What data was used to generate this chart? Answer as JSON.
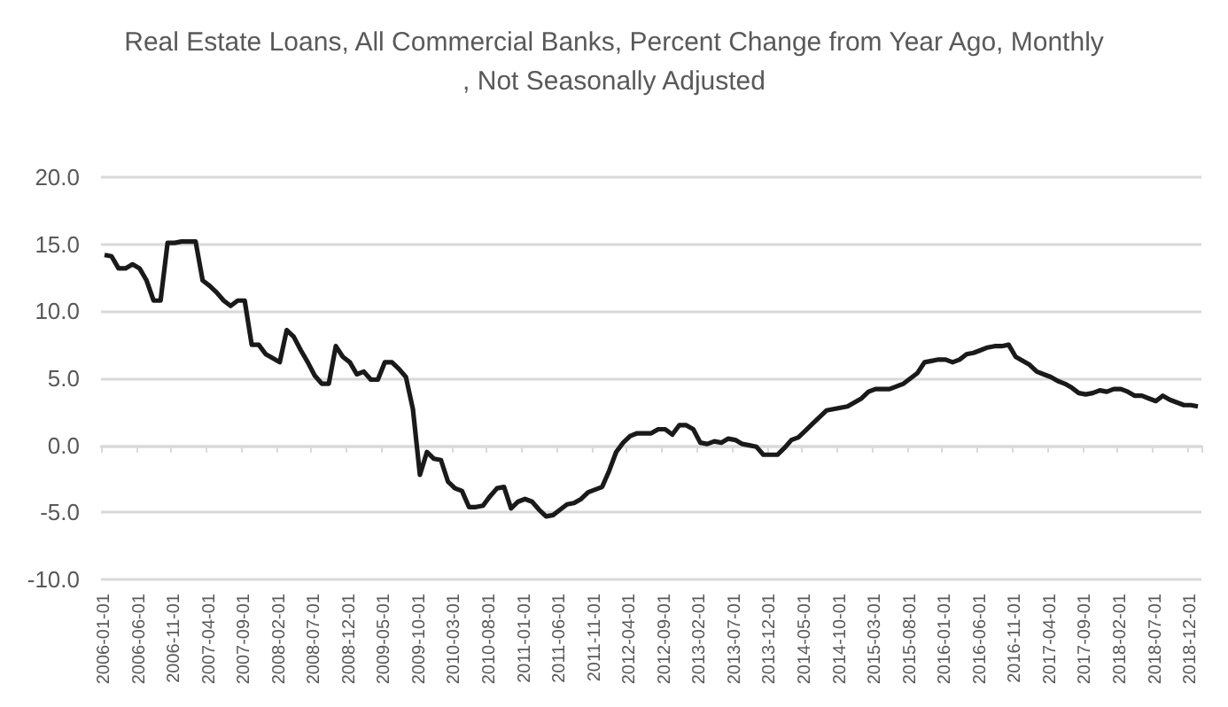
{
  "chart_data": {
    "type": "line",
    "title": "Real Estate Loans, All Commercial Banks, Percent Change from Year Ago, Monthly, Not Seasonally Adjusted",
    "categories": [
      "2006-01-01",
      null,
      null,
      null,
      null,
      "2006-06-01",
      null,
      null,
      null,
      null,
      "2006-11-01",
      null,
      null,
      null,
      null,
      "2007-04-01",
      null,
      null,
      null,
      null,
      "2007-09-01",
      null,
      null,
      null,
      null,
      "2008-02-01",
      null,
      null,
      null,
      null,
      "2008-07-01",
      null,
      null,
      null,
      null,
      "2008-12-01",
      null,
      null,
      null,
      null,
      "2009-05-01",
      null,
      null,
      null,
      null,
      "2009-10-01",
      null,
      null,
      null,
      null,
      "2010-03-01",
      null,
      null,
      null,
      null,
      "2010-08-01",
      null,
      null,
      null,
      null,
      "2011-01-01",
      null,
      null,
      null,
      null,
      "2011-06-01",
      null,
      null,
      null,
      null,
      "2011-11-01",
      null,
      null,
      null,
      null,
      "2012-04-01",
      null,
      null,
      null,
      null,
      "2012-09-01",
      null,
      null,
      null,
      null,
      "2013-02-01",
      null,
      null,
      null,
      null,
      "2013-07-01",
      null,
      null,
      null,
      null,
      "2013-12-01",
      null,
      null,
      null,
      null,
      "2014-05-01",
      null,
      null,
      null,
      null,
      "2014-10-01",
      null,
      null,
      null,
      null,
      "2015-03-01",
      null,
      null,
      null,
      null,
      "2015-08-01",
      null,
      null,
      null,
      null,
      "2016-01-01",
      null,
      null,
      null,
      null,
      "2016-06-01",
      null,
      null,
      null,
      null,
      "2016-11-01",
      null,
      null,
      null,
      null,
      "2017-04-01",
      null,
      null,
      null,
      null,
      "2017-09-01",
      null,
      null,
      null,
      null,
      "2018-02-01",
      null,
      null,
      null,
      null,
      "2018-07-01",
      null,
      null,
      null,
      null,
      "2018-12-01",
      null
    ],
    "values": [
      14.2,
      14.1,
      13.2,
      13.2,
      13.5,
      13.2,
      12.3,
      10.8,
      10.8,
      15.1,
      15.1,
      15.2,
      15.2,
      15.2,
      12.3,
      11.9,
      11.4,
      10.8,
      10.4,
      10.8,
      10.8,
      7.5,
      7.5,
      6.8,
      6.5,
      6.2,
      8.6,
      8.1,
      7.1,
      6.2,
      5.2,
      4.6,
      4.6,
      7.4,
      6.6,
      6.2,
      5.3,
      5.5,
      4.9,
      4.9,
      6.2,
      6.2,
      5.7,
      5.1,
      2.7,
      -2.2,
      -0.5,
      -1.0,
      -1.1,
      -2.7,
      -3.2,
      -3.4,
      -4.6,
      -4.6,
      -4.5,
      -3.8,
      -3.2,
      -3.1,
      -4.7,
      -4.2,
      -4.0,
      -4.2,
      -4.8,
      -5.3,
      -5.2,
      -4.8,
      -4.4,
      -4.3,
      -4.0,
      -3.5,
      -3.3,
      -3.1,
      -1.9,
      -0.5,
      0.2,
      0.7,
      0.9,
      0.9,
      0.9,
      1.2,
      1.2,
      0.8,
      1.5,
      1.5,
      1.2,
      0.2,
      0.1,
      0.3,
      0.2,
      0.5,
      0.4,
      0.1,
      0.0,
      -0.1,
      -0.7,
      -0.7,
      -0.7,
      -0.2,
      0.4,
      0.6,
      1.1,
      1.6,
      2.1,
      2.6,
      2.7,
      2.8,
      2.9,
      3.2,
      3.5,
      4.0,
      4.2,
      4.2,
      4.2,
      4.4,
      4.6,
      5.0,
      5.4,
      6.2,
      6.3,
      6.4,
      6.4,
      6.2,
      6.4,
      6.8,
      6.9,
      7.1,
      7.3,
      7.4,
      7.4,
      7.5,
      6.6,
      6.3,
      6.0,
      5.5,
      5.3,
      5.1,
      4.8,
      4.6,
      4.3,
      3.9,
      3.8,
      3.9,
      4.1,
      4.0,
      4.2,
      4.2,
      4.0,
      3.7,
      3.7,
      3.5,
      3.3,
      3.7,
      3.4,
      3.2,
      3.0,
      3.0,
      2.9
    ],
    "color": "#1a1a1a",
    "marker": "none",
    "ylim": [
      -10,
      20
    ],
    "yticks": [
      {
        "value": -10,
        "label": "-10.0"
      },
      {
        "value": -5,
        "label": "-5.0"
      },
      {
        "value": 0,
        "label": "0.0"
      },
      {
        "value": 5,
        "label": "5.0"
      },
      {
        "value": 10,
        "label": "10.0"
      },
      {
        "value": 15,
        "label": "15.0"
      },
      {
        "value": 20,
        "label": "20.0"
      }
    ],
    "grid": "y"
  }
}
